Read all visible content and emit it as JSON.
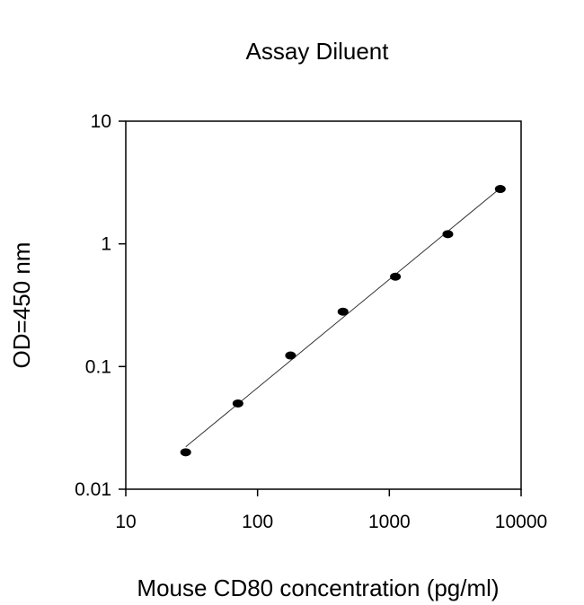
{
  "chart_data": {
    "type": "scatter",
    "title": "Assay Diluent",
    "xlabel": "Mouse CD80 concentration (pg/ml)",
    "ylabel": "OD=450 nm",
    "xscale": "log",
    "yscale": "log",
    "xlim": [
      10,
      10000
    ],
    "ylim": [
      0.01,
      10
    ],
    "x_ticks": [
      "10",
      "100",
      "1000",
      "10000"
    ],
    "y_ticks": [
      "0.01",
      "0.1",
      "1",
      "10"
    ],
    "grid": false,
    "legend": "none",
    "fit_line": true,
    "series": [
      {
        "x": [
          28.5,
          71,
          178,
          445,
          1112,
          2780,
          6950
        ],
        "y": [
          0.02,
          0.05,
          0.123,
          0.28,
          0.54,
          1.2,
          2.8
        ]
      }
    ]
  }
}
